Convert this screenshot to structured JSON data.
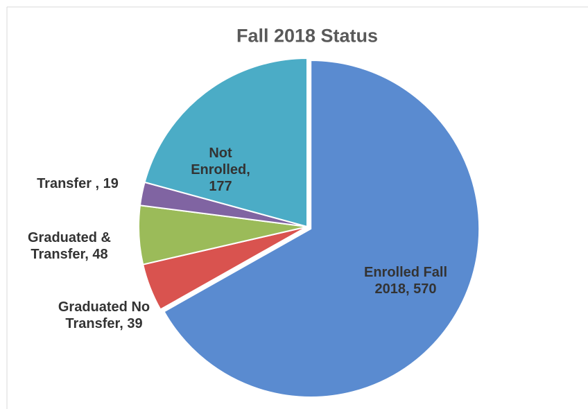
{
  "chart_data": {
    "type": "pie",
    "title": "Fall 2018 Status",
    "categories": [
      "Enrolled Fall 2018,",
      "Graduated No Transfer,",
      "Graduated & Transfer,",
      "Transfer ,",
      "Not Enrolled,"
    ],
    "values": [
      570,
      39,
      48,
      19,
      177
    ],
    "colors": [
      "#5a8bd0",
      "#d9534f",
      "#9bbb59",
      "#8064a2",
      "#4bacc6"
    ]
  }
}
